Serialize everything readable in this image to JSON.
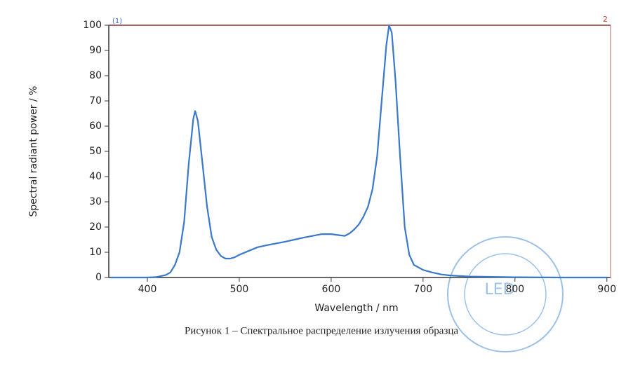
{
  "chart_data": {
    "type": "line",
    "series_marker_left": "(1)",
    "series_marker_right": "2",
    "xlabel": "Wavelength / nm",
    "ylabel": "Spectral radiant power / %",
    "caption": "Рисунок 1 – Спектральное распределение излучения образца",
    "stamp": "LED",
    "xlim": [
      358,
      904
    ],
    "ylim": [
      0,
      100
    ],
    "xticks": [
      400,
      500,
      600,
      700,
      800,
      900
    ],
    "yticks": [
      0,
      10,
      20,
      30,
      40,
      50,
      60,
      70,
      80,
      90,
      100
    ],
    "color": "#3a78c9",
    "x": [
      360,
      400,
      410,
      420,
      425,
      430,
      435,
      440,
      445,
      450,
      452,
      455,
      460,
      465,
      470,
      475,
      480,
      485,
      490,
      495,
      500,
      510,
      520,
      530,
      540,
      550,
      560,
      570,
      580,
      590,
      600,
      610,
      615,
      620,
      625,
      630,
      635,
      640,
      645,
      650,
      655,
      660,
      663,
      666,
      670,
      675,
      680,
      685,
      690,
      700,
      710,
      720,
      730,
      750,
      800,
      850,
      900
    ],
    "values": [
      0,
      0,
      0.2,
      1,
      2,
      5,
      10,
      22,
      45,
      63,
      66,
      62,
      45,
      28,
      16,
      11,
      8.5,
      7.5,
      7.5,
      8,
      9,
      10.5,
      12,
      12.8,
      13.5,
      14.2,
      15,
      15.8,
      16.5,
      17.2,
      17.2,
      16.7,
      16.5,
      17.5,
      19,
      21,
      24,
      28,
      35,
      48,
      70,
      92,
      100,
      97,
      78,
      48,
      20,
      9,
      5,
      3,
      2,
      1.2,
      0.8,
      0.4,
      0.1,
      0,
      0
    ]
  }
}
